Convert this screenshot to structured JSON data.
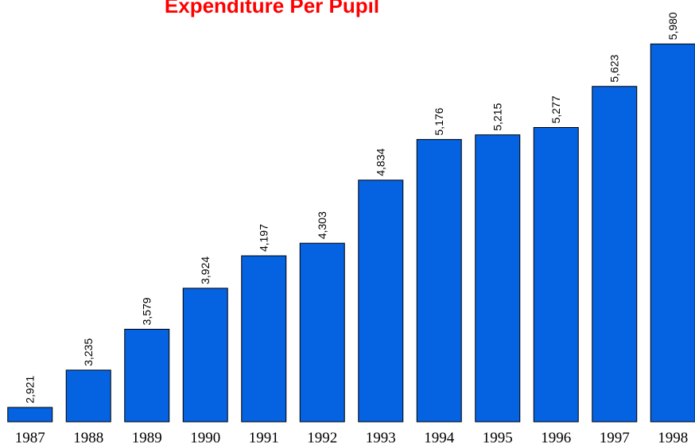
{
  "chart_data": {
    "type": "bar",
    "title": "Expenditure Per Pupil",
    "categories": [
      "1987",
      "1988",
      "1989",
      "1990",
      "1991",
      "1992",
      "1993",
      "1994",
      "1995",
      "1996",
      "1997",
      "1998"
    ],
    "values": [
      2921,
      3235,
      3579,
      3924,
      4197,
      4303,
      4834,
      5176,
      5215,
      5277,
      5623,
      5980
    ],
    "value_labels": [
      "2,921",
      "3,235",
      "3,579",
      "3,924",
      "4,197",
      "4,303",
      "4,834",
      "5,176",
      "5,215",
      "5,277",
      "5,623",
      "5,980"
    ],
    "color": "#0562e0",
    "ylim": [
      2800,
      6350
    ]
  }
}
